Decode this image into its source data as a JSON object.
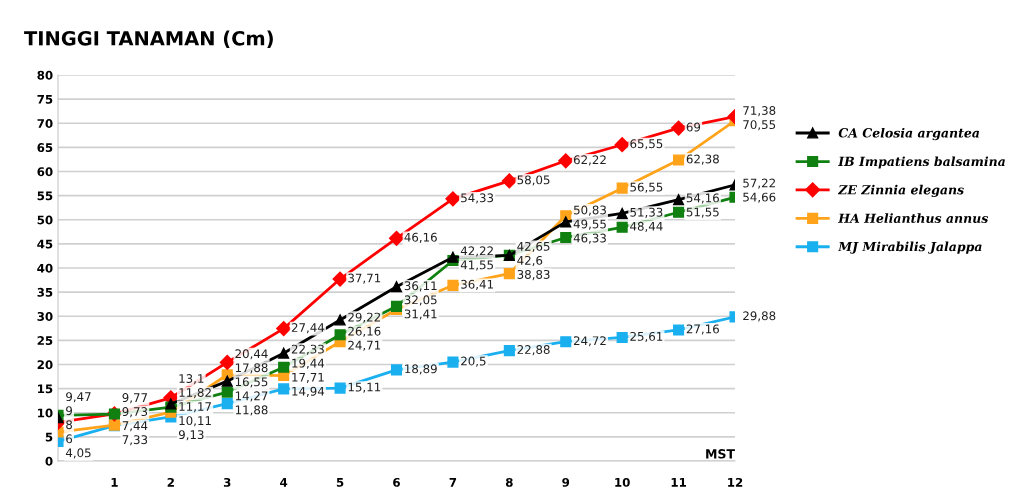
{
  "chart_data": {
    "type": "line",
    "title": "TINGGI TANAMAN (Cm)",
    "xlabel": "MST",
    "x": [
      0,
      1,
      2,
      3,
      4,
      5,
      6,
      7,
      8,
      9,
      10,
      11,
      12
    ],
    "xlim": [
      0,
      12
    ],
    "xticks": [
      {
        "value": 0,
        "label": null
      },
      1,
      2,
      3,
      4,
      5,
      6,
      7,
      8,
      9,
      10,
      11,
      12
    ],
    "ylim": [
      0,
      80
    ],
    "yticks": [
      0,
      5,
      10,
      15,
      20,
      25,
      30,
      35,
      40,
      45,
      50,
      55,
      60,
      65,
      70,
      75,
      80
    ],
    "grid": "y",
    "legend": "right",
    "line_style": "solid",
    "series": [
      {
        "name": "CA Celosia argantea",
        "color": "#000000",
        "marker": "triangle",
        "values": [
          9,
          null,
          11.82,
          16.55,
          22.33,
          29.22,
          36.11,
          42.22,
          42.6,
          49.55,
          51.33,
          54.16,
          57.22
        ],
        "value_labels": [
          "9",
          null,
          "11,82",
          "16,55",
          "22,33",
          "29,22",
          "36,11",
          "42,22",
          "42,6",
          "49,55",
          "51,33",
          "54,16",
          "57,22"
        ]
      },
      {
        "name": "IB Impatiens balsamina",
        "color": "#108010",
        "marker": "square",
        "values": [
          9.47,
          9.73,
          11.17,
          14.27,
          19.44,
          26.16,
          32.05,
          41.55,
          42.65,
          46.33,
          48.44,
          51.55,
          54.66
        ],
        "value_labels": [
          "9,47",
          "9,73",
          "11,17",
          "14,27",
          "19,44",
          "26,16",
          "32,05",
          "41,55",
          "42,65",
          "46,33",
          "48,44",
          "51,55",
          "54,66"
        ]
      },
      {
        "name": "ZE Zinnia elegans",
        "color": "#ff0000",
        "marker": "diamond",
        "values": [
          8,
          9.77,
          13.1,
          20.44,
          27.44,
          37.71,
          46.16,
          54.33,
          58.05,
          62.22,
          65.55,
          69,
          71.38
        ],
        "value_labels": [
          "8",
          "9,77",
          "13,1",
          "20,44",
          "27,44",
          "37,71",
          "46,16",
          "54,33",
          "58,05",
          "62,22",
          "65,55",
          "69",
          "71,38"
        ]
      },
      {
        "name": "HA Helianthus annus",
        "color": "#ffa31a",
        "marker": "square",
        "values": [
          6,
          7.44,
          10.11,
          17.88,
          17.71,
          24.71,
          31.41,
          36.41,
          38.83,
          50.83,
          56.55,
          62.38,
          70.55
        ],
        "value_labels": [
          "6",
          "7,44",
          "10,11",
          "17,88",
          "17,71",
          "24,71",
          "31,41",
          "36,41",
          "38,83",
          "50,83",
          "56,55",
          "62,38",
          "70,55"
        ]
      },
      {
        "name": "MJ Mirabilis Jalappa",
        "color": "#1ab0f0",
        "marker": "square",
        "values": [
          4.05,
          7.33,
          9.13,
          11.88,
          14.94,
          15.11,
          18.89,
          20.5,
          22.88,
          24.72,
          25.61,
          27.16,
          29.88
        ],
        "value_labels": [
          "4,05",
          "7,33",
          "9,13",
          "11,88",
          "14,94",
          "15,11",
          "18,89",
          "20,5",
          "22,88",
          "24,72",
          "25,61",
          "27,16",
          "29,88"
        ]
      }
    ]
  }
}
